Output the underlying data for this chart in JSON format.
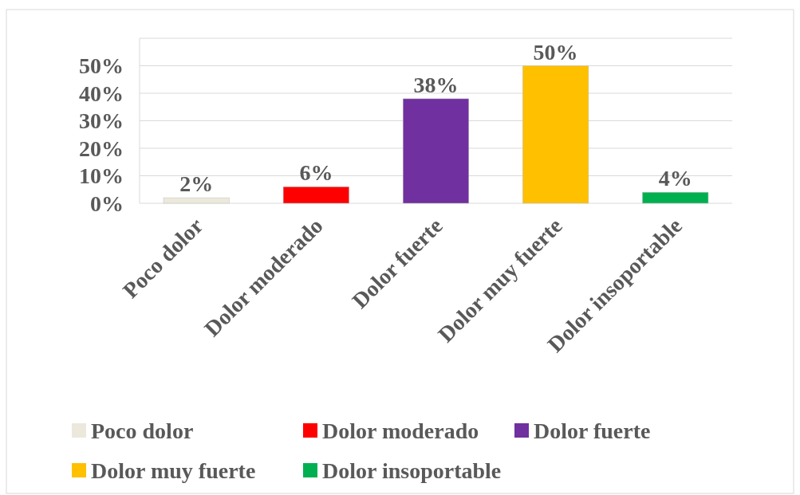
{
  "chart_data": {
    "type": "bar",
    "categories": [
      "Poco dolor",
      "Dolor moderado",
      "Dolor fuerte",
      "Dolor muy fuerte",
      "Dolor insoportable"
    ],
    "series": [
      {
        "name": "Poco dolor",
        "color": "#ece9dc",
        "values": [
          2,
          null,
          null,
          null,
          null
        ],
        "value_labels": [
          "2%",
          null,
          null,
          null,
          null
        ]
      },
      {
        "name": "Dolor moderado",
        "color": "#ff0000",
        "values": [
          null,
          6,
          null,
          null,
          null
        ],
        "value_labels": [
          null,
          "6%",
          null,
          null,
          null
        ]
      },
      {
        "name": "Dolor fuerte",
        "color": "#7030a0",
        "values": [
          null,
          null,
          38,
          null,
          null
        ],
        "value_labels": [
          null,
          null,
          "38%",
          null,
          null
        ]
      },
      {
        "name": "Dolor muy fuerte",
        "color": "#ffc000",
        "values": [
          null,
          null,
          null,
          50,
          null
        ],
        "value_labels": [
          null,
          null,
          null,
          "50%",
          null
        ]
      },
      {
        "name": "Dolor insoportable",
        "color": "#00b050",
        "values": [
          null,
          null,
          null,
          null,
          4
        ],
        "value_labels": [
          null,
          null,
          null,
          null,
          "4%"
        ]
      }
    ],
    "ylim": [
      0,
      60
    ],
    "yticks": [
      {
        "value": 0,
        "label": "0%"
      },
      {
        "value": 10,
        "label": "10%"
      },
      {
        "value": 20,
        "label": "20%"
      },
      {
        "value": 30,
        "label": "30%"
      },
      {
        "value": 40,
        "label": "40%"
      },
      {
        "value": 50,
        "label": "50%"
      },
      {
        "value": 60,
        "label": null
      }
    ],
    "grid": "y",
    "legend": "bottom"
  }
}
